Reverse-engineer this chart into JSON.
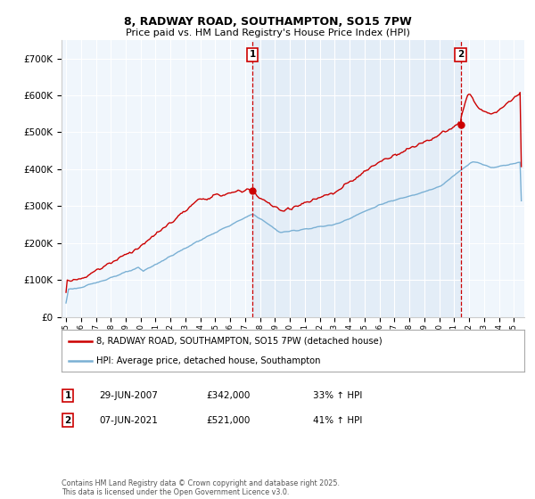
{
  "title_line1": "8, RADWAY ROAD, SOUTHAMPTON, SO15 7PW",
  "title_line2": "Price paid vs. HM Land Registry's House Price Index (HPI)",
  "ylim": [
    0,
    750000
  ],
  "yticks": [
    0,
    100000,
    200000,
    300000,
    400000,
    500000,
    600000,
    700000
  ],
  "ytick_labels": [
    "£0",
    "£100K",
    "£200K",
    "£300K",
    "£400K",
    "£500K",
    "£600K",
    "£700K"
  ],
  "marker1_year": 2007.49,
  "marker1_price": 342000,
  "marker2_year": 2021.43,
  "marker2_price": 521000,
  "line1_color": "#cc0000",
  "line2_color": "#7ab0d4",
  "shade_color": "#deeaf5",
  "chart_bg": "#f0f6fc",
  "line1_label": "8, RADWAY ROAD, SOUTHAMPTON, SO15 7PW (detached house)",
  "line2_label": "HPI: Average price, detached house, Southampton",
  "background_color": "#ffffff",
  "grid_color": "#cccccc",
  "footer": "Contains HM Land Registry data © Crown copyright and database right 2025.\nThis data is licensed under the Open Government Licence v3.0.",
  "info_rows": [
    {
      "num": "1",
      "date": "29-JUN-2007",
      "price": "£342,000",
      "hpi": "33% ↑ HPI"
    },
    {
      "num": "2",
      "date": "07-JUN-2021",
      "price": "£521,000",
      "hpi": "41% ↑ HPI"
    }
  ]
}
